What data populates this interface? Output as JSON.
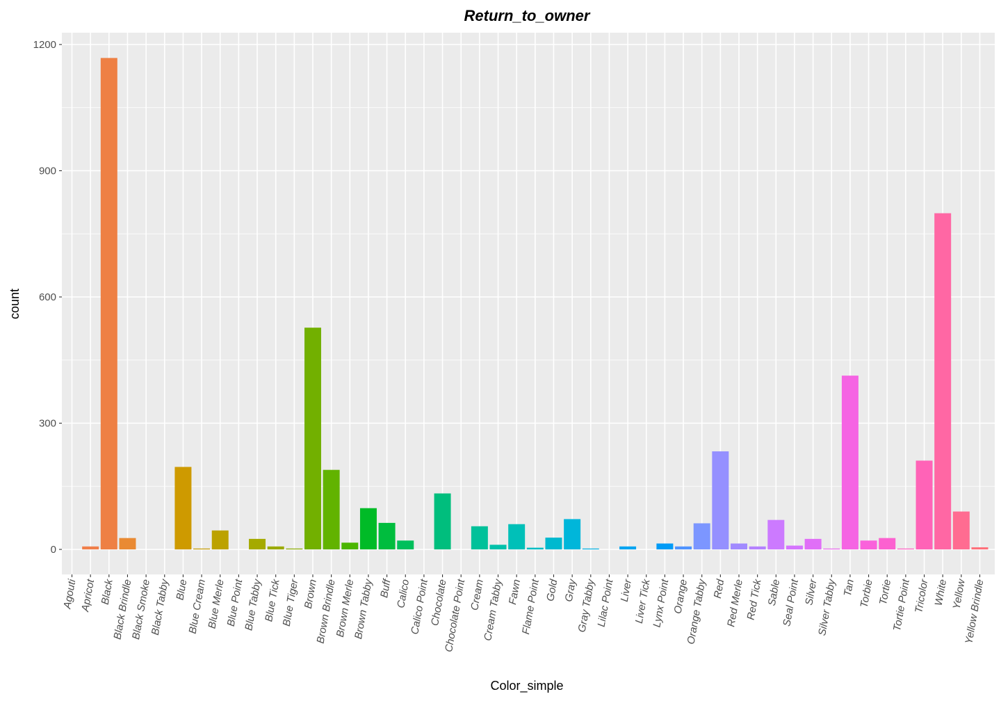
{
  "chart_data": {
    "type": "bar",
    "title": "Return_to_owner",
    "xlabel": "Color_simple",
    "ylabel": "count",
    "ylim": [
      -60,
      1240
    ],
    "yticks": [
      0,
      300,
      600,
      900,
      1200
    ],
    "grid": true,
    "legend": "none",
    "categories": [
      "Agouti",
      "Apricot",
      "Black",
      "Black Brindle",
      "Black Smoke",
      "Black Tabby",
      "Blue",
      "Blue Cream",
      "Blue Merle",
      "Blue Point",
      "Blue Tabby",
      "Blue Tick",
      "Blue Tiger",
      "Brown",
      "Brown Brindle",
      "Brown Merle",
      "Brown Tabby",
      "Buff",
      "Calico",
      "Calico Point",
      "Chocolate",
      "Chocolate Point",
      "Cream",
      "Cream Tabby",
      "Fawn",
      "Flame Point",
      "Gold",
      "Gray",
      "Gray Tabby",
      "Lilac Point",
      "Liver",
      "Liver Tick",
      "Lynx Point",
      "Orange",
      "Orange Tabby",
      "Red",
      "Red Merle",
      "Red Tick",
      "Sable",
      "Seal Point",
      "Silver",
      "Silver Tabby",
      "Tan",
      "Torbie",
      "Tortie",
      "Tortie Point",
      "Tricolor",
      "White",
      "Yellow",
      "Yellow Brindle"
    ],
    "values": [
      0,
      7,
      1168,
      27,
      0,
      0,
      196,
      2,
      45,
      0,
      25,
      7,
      2,
      527,
      189,
      16,
      98,
      63,
      21,
      0,
      133,
      0,
      55,
      11,
      60,
      4,
      28,
      72,
      2,
      0,
      7,
      0,
      14,
      7,
      62,
      233,
      14,
      7,
      70,
      9,
      25,
      2,
      413,
      21,
      27,
      2,
      211,
      799,
      90,
      5
    ],
    "colors": [
      "#F8766D",
      "#F07F4A",
      "#EE8044",
      "#E98A33",
      "#E09300",
      "#D89C00",
      "#CE9A00",
      "#C59900",
      "#BCA200",
      "#B0A700",
      "#A5AA00",
      "#9BAA00",
      "#8AAB00",
      "#72B000",
      "#62B300",
      "#4AB500",
      "#00BB27",
      "#00BD3E",
      "#00BF5B",
      "#00C070",
      "#00BE7D",
      "#00C08F",
      "#00C19A",
      "#00C1AA",
      "#00C0B8",
      "#00BDC4",
      "#00B9CF",
      "#00B6DA",
      "#00B1E3",
      "#00ABEB",
      "#00A4F1",
      "#00A0F4",
      "#009BF6",
      "#4F93FF",
      "#7C96FF",
      "#9590FF",
      "#A18AFF",
      "#B481FF",
      "#CC7AFF",
      "#D575FE",
      "#E06FF7",
      "#EA6BEE",
      "#F564E3",
      "#FA62DB",
      "#FC61D0",
      "#FF61C5",
      "#FF63B7",
      "#FF67A4",
      "#FF6C91",
      "#FF717B"
    ]
  }
}
